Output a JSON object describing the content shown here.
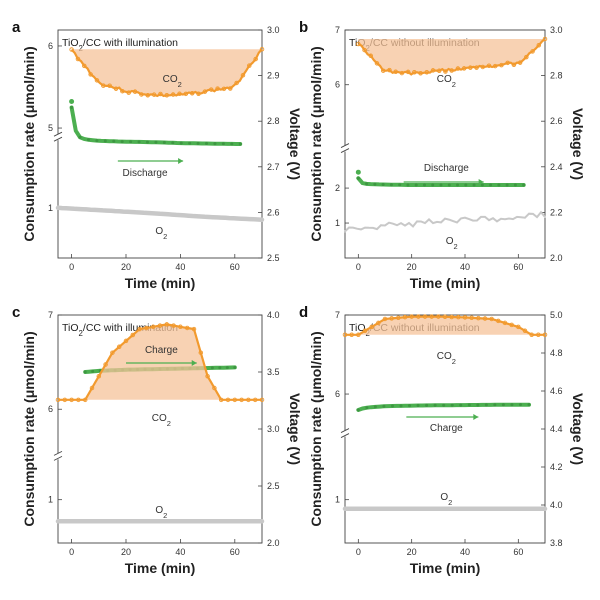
{
  "figure": {
    "x_label": "Time (min)",
    "y_left_label": "Consumption rate (μmol/min)",
    "y_right_label": "Voltage (V)"
  },
  "colors": {
    "co2": "#f29a2e",
    "co2_fill": "#f6c39a",
    "voltage": "#4caf50",
    "o2": "#c8c8c8",
    "frame": "#444444"
  },
  "chart_data": [
    {
      "panel": "a",
      "type": "line",
      "title": "TiO2/CC with illumination",
      "xlabel": "Time (min)",
      "ylabel": "Consumption rate (μmol/min)",
      "y2label": "Voltage (V)",
      "xlim": [
        -5,
        70
      ],
      "x_ticks": [
        "0",
        "20",
        "40",
        "60"
      ],
      "y_left_ticks": [
        "1",
        "5",
        "6"
      ],
      "y_right_ticks": [
        "2.5",
        "2.6",
        "2.7",
        "2.8",
        "2.9",
        "3.0"
      ],
      "ylim_right": [
        2.5,
        3.0
      ],
      "annotations": {
        "co2": "CO2",
        "o2": "O2",
        "process": "Discharge"
      },
      "series": [
        {
          "name": "CO2",
          "axis": "left",
          "style": "markers",
          "x": [
            0,
            5,
            10,
            20,
            30,
            40,
            50,
            60,
            65,
            70
          ],
          "y": [
            5.95,
            5.75,
            5.55,
            5.45,
            5.4,
            5.4,
            5.45,
            5.5,
            5.75,
            5.95
          ]
        },
        {
          "name": "Discharge",
          "axis": "right",
          "style": "markers",
          "x": [
            0,
            1,
            2,
            3,
            5,
            10,
            20,
            30,
            40,
            50,
            60,
            62
          ],
          "y": [
            2.83,
            2.79,
            2.77,
            2.765,
            2.76,
            2.757,
            2.755,
            2.754,
            2.752,
            2.751,
            2.75,
            2.75
          ]
        },
        {
          "name": "O2",
          "axis": "right",
          "style": "line",
          "x": [
            -5,
            10,
            30,
            50,
            70
          ],
          "y": [
            2.61,
            2.605,
            2.598,
            2.59,
            2.584
          ]
        }
      ]
    },
    {
      "panel": "b",
      "type": "line",
      "title": "TiO2/CC without illumination",
      "xlabel": "Time (min)",
      "ylabel": "Consumption rate (μmol/min)",
      "y2label": "Voltage (V)",
      "xlim": [
        -5,
        70
      ],
      "x_ticks": [
        "0",
        "20",
        "40",
        "60"
      ],
      "y_left_ticks": [
        "1",
        "2",
        "6",
        "7"
      ],
      "y_right_ticks": [
        "2.0",
        "2.2",
        "2.4",
        "2.6",
        "2.8",
        "3.0"
      ],
      "ylim_right": [
        2.0,
        3.0
      ],
      "annotations": {
        "co2": "CO2",
        "o2": "O2",
        "process": "Discharge"
      },
      "series": [
        {
          "name": "CO2",
          "axis": "left",
          "style": "markers",
          "x": [
            0,
            5,
            10,
            20,
            30,
            40,
            50,
            60,
            65,
            70
          ],
          "y": [
            6.75,
            6.5,
            6.25,
            6.2,
            6.25,
            6.3,
            6.35,
            6.4,
            6.6,
            6.85
          ]
        },
        {
          "name": "Discharge",
          "axis": "right",
          "style": "markers",
          "x": [
            0,
            1,
            3,
            10,
            20,
            30,
            40,
            50,
            60,
            62
          ],
          "y": [
            2.35,
            2.33,
            2.325,
            2.322,
            2.32,
            2.32,
            2.32,
            2.32,
            2.32,
            2.32
          ]
        },
        {
          "name": "O2",
          "axis": "right",
          "style": "line",
          "x": [
            -5,
            10,
            30,
            50,
            70
          ],
          "y": [
            2.12,
            2.14,
            2.16,
            2.17,
            2.19
          ]
        }
      ]
    },
    {
      "panel": "c",
      "type": "line",
      "title": "TiO2/CC with illumination",
      "xlabel": "Time (min)",
      "ylabel": "Consumption rate (μmol/min)",
      "y2label": "Voltage (V)",
      "xlim": [
        -5,
        70
      ],
      "x_ticks": [
        "0",
        "20",
        "40",
        "60"
      ],
      "y_left_ticks": [
        "1",
        "6",
        "7"
      ],
      "y_right_ticks": [
        "2.0",
        "2.5",
        "3.0",
        "3.5",
        "4.0"
      ],
      "ylim_right": [
        2.0,
        4.0
      ],
      "annotations": {
        "co2": "CO2",
        "o2": "O2",
        "process": "Charge"
      },
      "series": [
        {
          "name": "Charge",
          "axis": "right",
          "style": "markers",
          "x": [
            5,
            10,
            20,
            30,
            40,
            50,
            60
          ],
          "y": [
            3.5,
            3.51,
            3.52,
            3.525,
            3.53,
            3.535,
            3.54
          ]
        },
        {
          "name": "CO2",
          "axis": "left",
          "style": "markers",
          "x": [
            -5,
            5,
            15,
            25,
            35,
            45,
            50,
            55,
            60,
            70
          ],
          "y": [
            6.1,
            6.1,
            6.6,
            6.85,
            6.9,
            6.85,
            6.35,
            6.1,
            6.1,
            6.1
          ]
        },
        {
          "name": "O2",
          "axis": "right",
          "style": "line",
          "x": [
            -5,
            70
          ],
          "y": [
            2.19,
            2.19
          ]
        }
      ]
    },
    {
      "panel": "d",
      "type": "line",
      "title": "TiO2/CC without illumination",
      "xlabel": "Time (min)",
      "ylabel": "Consumption rate (μmol/min)",
      "y2label": "Voltage (V)",
      "xlim": [
        -5,
        70
      ],
      "x_ticks": [
        "0",
        "20",
        "40",
        "60"
      ],
      "y_left_ticks": [
        "1",
        "6",
        "7"
      ],
      "y_right_ticks": [
        "3.8",
        "4.0",
        "4.2",
        "4.4",
        "4.6",
        "4.8",
        "5.0"
      ],
      "ylim_right": [
        3.8,
        5.0
      ],
      "annotations": {
        "co2": "CO2",
        "o2": "O2",
        "process": "Charge"
      },
      "series": [
        {
          "name": "CO2",
          "axis": "left",
          "style": "markers",
          "x": [
            -5,
            0,
            5,
            10,
            20,
            30,
            40,
            50,
            60,
            65,
            70
          ],
          "y": [
            6.75,
            6.75,
            6.85,
            6.95,
            6.98,
            6.98,
            6.97,
            6.95,
            6.85,
            6.75,
            6.75
          ]
        },
        {
          "name": "Charge",
          "axis": "right",
          "style": "markers",
          "x": [
            0,
            2,
            5,
            10,
            20,
            30,
            40,
            50,
            60,
            64
          ],
          "y": [
            4.5,
            4.51,
            4.515,
            4.52,
            4.523,
            4.525,
            4.526,
            4.527,
            4.528,
            4.528
          ]
        },
        {
          "name": "O2",
          "axis": "right",
          "style": "line",
          "x": [
            -5,
            70
          ],
          "y": [
            3.98,
            3.98
          ]
        }
      ]
    }
  ]
}
